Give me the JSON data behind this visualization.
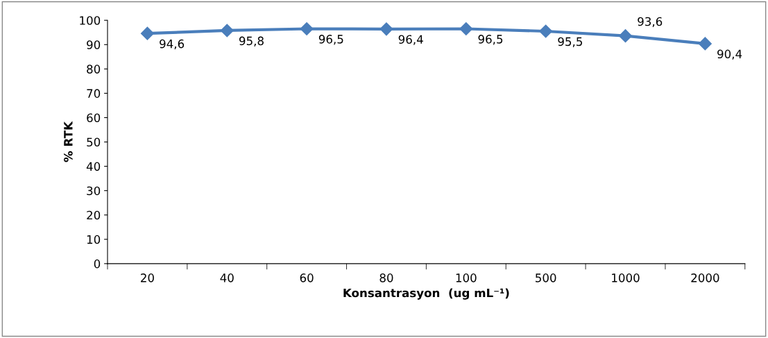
{
  "chart_data": {
    "type": "line",
    "xlabel": "Konsantrasyon  (ug mL⁻¹)",
    "ylabel": "% RTK",
    "categories": [
      "20",
      "40",
      "60",
      "80",
      "100",
      "500",
      "1000",
      "2000"
    ],
    "series": [
      {
        "color": "#4a7ebb",
        "values": [
          94.6,
          95.8,
          96.5,
          96.4,
          96.5,
          95.5,
          93.6,
          90.4
        ],
        "value_labels": [
          "94,6",
          "95,8",
          "96,5",
          "96,4",
          "96,5",
          "95,5",
          "93,6",
          "90,4"
        ]
      }
    ],
    "ylim": [
      0,
      100
    ],
    "yticks": [
      0,
      10,
      20,
      30,
      40,
      50,
      60,
      70,
      80,
      90,
      100
    ],
    "grid": false,
    "legend": false,
    "marker": "diamond",
    "line_style": "solid"
  }
}
